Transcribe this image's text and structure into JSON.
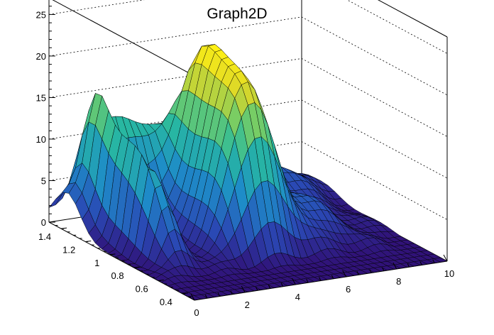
{
  "chart_data": {
    "type": "surface",
    "title": "Graph2D",
    "xlabel": "",
    "ylabel": "",
    "zlabel": "",
    "xlim": [
      0,
      10
    ],
    "ylim": [
      0.3,
      1.5
    ],
    "zlim": [
      0,
      27
    ],
    "x_ticks": [
      "0",
      "2",
      "4",
      "6",
      "8",
      "10"
    ],
    "y_ticks": [
      "0.4",
      "0.6",
      "0.8",
      "1",
      "1.2",
      "1.4"
    ],
    "z_ticks": [
      "0",
      "5",
      "10",
      "15",
      "20",
      "25"
    ],
    "grid": true,
    "colormap": "viridis",
    "surface_features": [
      {
        "kind": "ridge",
        "x": 4.5,
        "y": 1.0,
        "peak_z": 21
      },
      {
        "kind": "spike",
        "x": 1.0,
        "y": 1.15,
        "peak_z": 10
      },
      {
        "kind": "plateau",
        "x": 2.0,
        "y": 1.35,
        "peak_z": 14
      },
      {
        "kind": "floor",
        "z": 0
      }
    ]
  }
}
